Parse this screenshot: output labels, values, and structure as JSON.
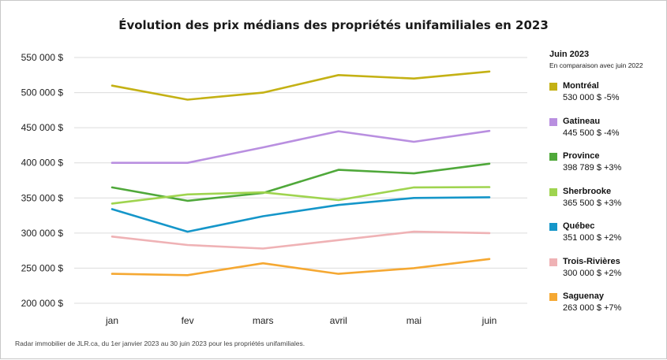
{
  "chart_data": {
    "type": "line",
    "title": "Évolution des prix médians des propriétés unifamiliales en 2023",
    "categories": [
      "jan",
      "fev",
      "mars",
      "avril",
      "mai",
      "juin"
    ],
    "y_ticks": [
      "550 000 $",
      "500 000 $",
      "450 000 $",
      "400 000 $",
      "350 000 $",
      "300 000 $",
      "250 000 $",
      "200 000 $"
    ],
    "ylim": [
      200000,
      550000
    ],
    "grid": true,
    "legend_position": "right",
    "legend_title": "Juin 2023",
    "legend_subtitle": "En comparaison avec juin 2022",
    "series": [
      {
        "name": "Montréal",
        "summary": "530 000 $ -5%",
        "color": "#c4b114",
        "values": [
          510000,
          490000,
          500000,
          525000,
          520000,
          530000
        ]
      },
      {
        "name": "Gatineau",
        "summary": "445 500 $ -4%",
        "color": "#b98fe0",
        "values": [
          400000,
          400000,
          422000,
          445000,
          430000,
          445500
        ]
      },
      {
        "name": "Province",
        "summary": "398 789 $ +3%",
        "color": "#4fa83a",
        "values": [
          365000,
          346000,
          357000,
          390000,
          385000,
          398789
        ]
      },
      {
        "name": "Sherbrooke",
        "summary": "365 500 $ +3%",
        "color": "#9fd44f",
        "values": [
          342000,
          355000,
          358000,
          347000,
          365000,
          365500
        ]
      },
      {
        "name": "Québec",
        "summary": "351 000 $ +2%",
        "color": "#1596c9",
        "values": [
          334000,
          302000,
          324000,
          340000,
          350000,
          351000
        ]
      },
      {
        "name": "Trois-Rivières",
        "summary": "300 000 $ +2%",
        "color": "#efb2b5",
        "values": [
          295000,
          283000,
          278000,
          290000,
          302000,
          300000
        ]
      },
      {
        "name": "Saguenay",
        "summary": "263 000 $ +7%",
        "color": "#f5a832",
        "values": [
          242000,
          240000,
          257000,
          242000,
          250000,
          263000
        ]
      }
    ]
  },
  "source_note": "Radar immobilier de JLR.ca, du 1er janvier 2023 au 30 juin 2023 pour les propriétés unifamiliales."
}
